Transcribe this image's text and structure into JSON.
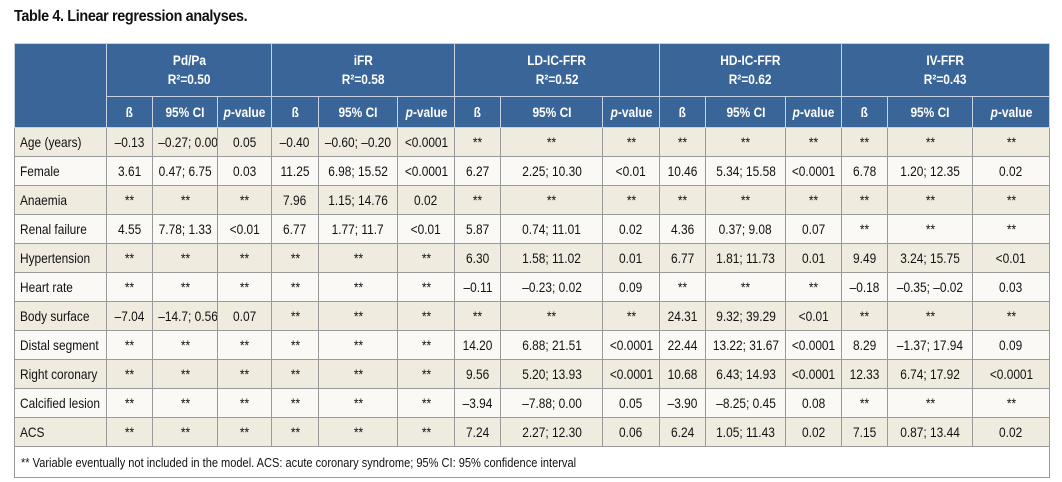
{
  "title": "Table 4. Linear regression analyses.",
  "groups": [
    {
      "name": "Pd/Pa",
      "r2": "R²=0.50"
    },
    {
      "name": "iFR",
      "r2": "R²=0.58"
    },
    {
      "name": "LD-IC-FFR",
      "r2": "R²=0.52"
    },
    {
      "name": "HD-IC-FFR",
      "r2": "R²=0.62"
    },
    {
      "name": "IV-FFR",
      "r2": "R²=0.43"
    }
  ],
  "subheaders": {
    "beta": "ß",
    "ci": "95% CI",
    "p_italic": "p",
    "p_rest": "-value"
  },
  "rows": [
    {
      "label": "Age (years)",
      "cells": [
        "–0.13",
        "–0.27; 0.00",
        "0.05",
        "–0.40",
        "–0.60; –0.20",
        "<0.0001",
        "**",
        "**",
        "**",
        "**",
        "**",
        "**",
        "**",
        "**",
        "**"
      ]
    },
    {
      "label": "Female",
      "cells": [
        "3.61",
        "0.47; 6.75",
        "0.03",
        "11.25",
        "6.98; 15.52",
        "<0.0001",
        "6.27",
        "2.25; 10.30",
        "<0.01",
        "10.46",
        "5.34; 15.58",
        "<0.0001",
        "6.78",
        "1.20; 12.35",
        "0.02"
      ]
    },
    {
      "label": "Anaemia",
      "cells": [
        "**",
        "**",
        "**",
        "7.96",
        "1.15; 14.76",
        "0.02",
        "**",
        "**",
        "**",
        "**",
        "**",
        "**",
        "**",
        "**",
        "**"
      ]
    },
    {
      "label": "Renal failure",
      "cells": [
        "4.55",
        "7.78; 1.33",
        "<0.01",
        "6.77",
        "1.77; 11.7",
        "<0.01",
        "5.87",
        "0.74; 11.01",
        "0.02",
        "4.36",
        "0.37; 9.08",
        "0.07",
        "**",
        "**",
        "**"
      ]
    },
    {
      "label": "Hypertension",
      "cells": [
        "**",
        "**",
        "**",
        "**",
        "**",
        "**",
        "6.30",
        "1.58; 11.02",
        "0.01",
        "6.77",
        "1.81; 11.73",
        "0.01",
        "9.49",
        "3.24; 15.75",
        "<0.01"
      ]
    },
    {
      "label": "Heart rate",
      "cells": [
        "**",
        "**",
        "**",
        "**",
        "**",
        "**",
        "–0.11",
        "–0.23; 0.02",
        "0.09",
        "**",
        "**",
        "**",
        "–0.18",
        "–0.35; –0.02",
        "0.03"
      ]
    },
    {
      "label": "Body surface",
      "cells": [
        "–7.04",
        "–14.7; 0.56",
        "0.07",
        "**",
        "**",
        "**",
        "**",
        "**",
        "**",
        "24.31",
        "9.32; 39.29",
        "<0.01",
        "**",
        "**",
        "**"
      ]
    },
    {
      "label": "Distal segment",
      "cells": [
        "**",
        "**",
        "**",
        "**",
        "**",
        "**",
        "14.20",
        "6.88; 21.51",
        "<0.0001",
        "22.44",
        "13.22; 31.67",
        "<0.0001",
        "8.29",
        "–1.37; 17.94",
        "0.09"
      ]
    },
    {
      "label": "Right coronary",
      "cells": [
        "**",
        "**",
        "**",
        "**",
        "**",
        "**",
        "9.56",
        "5.20; 13.93",
        "<0.0001",
        "10.68",
        "6.43; 14.93",
        "<0.0001",
        "12.33",
        "6.74; 17.92",
        "<0.0001"
      ]
    },
    {
      "label": "Calcified lesion",
      "cells": [
        "**",
        "**",
        "**",
        "**",
        "**",
        "**",
        "–3.94",
        "–7.88; 0.00",
        "0.05",
        "–3.90",
        "–8.25; 0.45",
        "0.08",
        "**",
        "**",
        "**"
      ]
    },
    {
      "label": "ACS",
      "cells": [
        "**",
        "**",
        "**",
        "**",
        "**",
        "**",
        "7.24",
        "2.27; 12.30",
        "0.06",
        "6.24",
        "1.05; 11.43",
        "0.02",
        "7.15",
        "0.87; 13.44",
        "0.02"
      ]
    }
  ],
  "footnote": "** Variable eventually not included in the model. ACS: acute coronary syndrome; 95% CI: 95% confidence interval"
}
